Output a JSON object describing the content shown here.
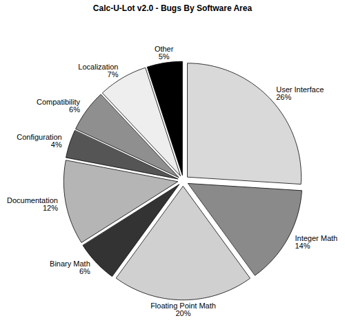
{
  "chart_data": {
    "type": "pie",
    "title": "Calc-U-Lot v2.0 - Bugs By Software Area",
    "categories": [
      "User Interface",
      "Integer Math",
      "Floating Point Math",
      "Binary Math",
      "Documentation",
      "Configuration",
      "Compatibility",
      "Localization",
      "Other"
    ],
    "values": [
      26,
      14,
      20,
      6,
      12,
      4,
      6,
      7,
      5
    ],
    "value_labels": [
      "26%",
      "14%",
      "20%",
      "6%",
      "12%",
      "4%",
      "6%",
      "7%",
      "5%"
    ],
    "colors": [
      "#d9d9d9",
      "#8a8a8a",
      "#d0d0d0",
      "#333333",
      "#b5b5b5",
      "#555555",
      "#8f8f8f",
      "#eeeeee",
      "#000000"
    ],
    "data_labels": true
  }
}
